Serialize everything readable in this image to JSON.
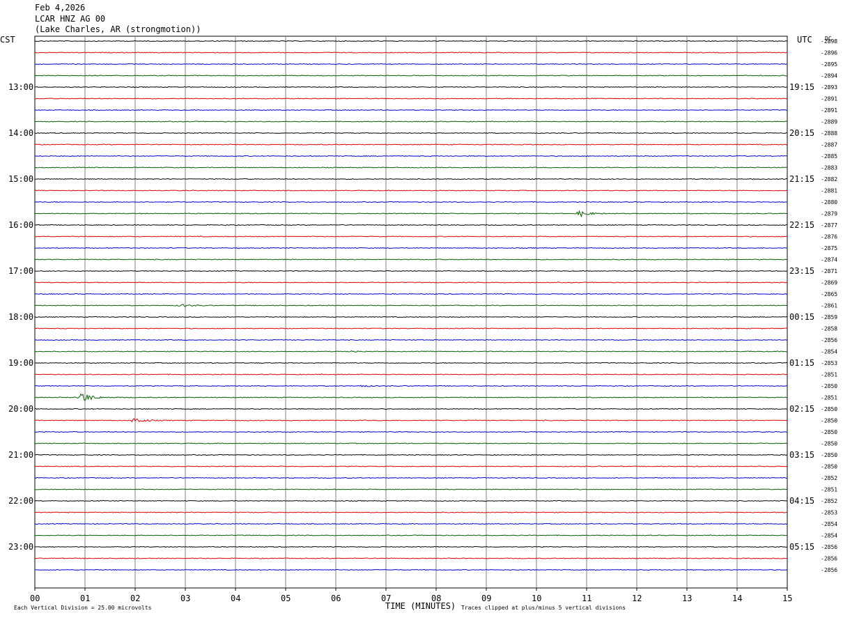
{
  "header": {
    "date": "Feb 4,2026",
    "station": "LCAR HNZ AG 00",
    "location": "(Lake Charles, AR (strongmotion))"
  },
  "axis_labels": {
    "left_timezone": "CST",
    "right_timezone": "UTC",
    "dc_label": "DC",
    "x_title": "TIME (MINUTES)"
  },
  "footer": {
    "scale_note": "Each Vertical Division =   25.00 microvolts",
    "clip_note": "Traces clipped at plus/minus 5 vertical divisions"
  },
  "colors": {
    "trace_cycle": [
      "#000000",
      "#e00000",
      "#0000d0",
      "#006000"
    ],
    "grid": "#808080"
  },
  "chart_data": {
    "type": "line",
    "title": "LCAR HNZ AG 00",
    "xlabel": "TIME (MINUTES)",
    "x_range": [
      0,
      15
    ],
    "x_ticks": [
      "00",
      "01",
      "02",
      "03",
      "04",
      "05",
      "06",
      "07",
      "08",
      "09",
      "10",
      "11",
      "12",
      "13",
      "14",
      "15"
    ],
    "row_minutes": 15,
    "left_hour_labels": [
      "13:00",
      "14:00",
      "15:00",
      "16:00",
      "17:00",
      "18:00",
      "19:00",
      "20:00",
      "21:00",
      "22:00",
      "23:00"
    ],
    "right_hour_labels": [
      "19:15",
      "20:15",
      "21:15",
      "22:15",
      "23:15",
      "00:15",
      "01:15",
      "02:15",
      "03:15",
      "04:15",
      "05:15"
    ],
    "dc_offsets": [
      -2898,
      -2896,
      -2895,
      -2894,
      -2893,
      -2891,
      -2891,
      -2889,
      -2888,
      -2887,
      -2885,
      -2883,
      -2882,
      -2881,
      -2880,
      -2879,
      -2877,
      -2876,
      -2875,
      -2874,
      -2871,
      -2869,
      -2865,
      -2861,
      -2859,
      -2858,
      -2856,
      -2854,
      -2853,
      -2851,
      -2850,
      -2851,
      -2850,
      -2850,
      -2850,
      -2850,
      -2850,
      -2850,
      -2852,
      -2851,
      -2852,
      -2853,
      -2854,
      -2854,
      -2856,
      -2856,
      -2856
    ],
    "events": [
      {
        "row": 15,
        "minute": 10.85,
        "amplitude_divisions": 1.2
      },
      {
        "row": 23,
        "minute": 2.9,
        "amplitude_divisions": 0.6
      },
      {
        "row": 30,
        "minute": 6.5,
        "amplitude_divisions": 0.3
      },
      {
        "row": 31,
        "minute": 0.9,
        "amplitude_divisions": 2.5
      },
      {
        "row": 33,
        "minute": 1.97,
        "amplitude_divisions": 1.2
      },
      {
        "row": 27,
        "minute": 6.3,
        "amplitude_divisions": 0.3
      }
    ]
  }
}
